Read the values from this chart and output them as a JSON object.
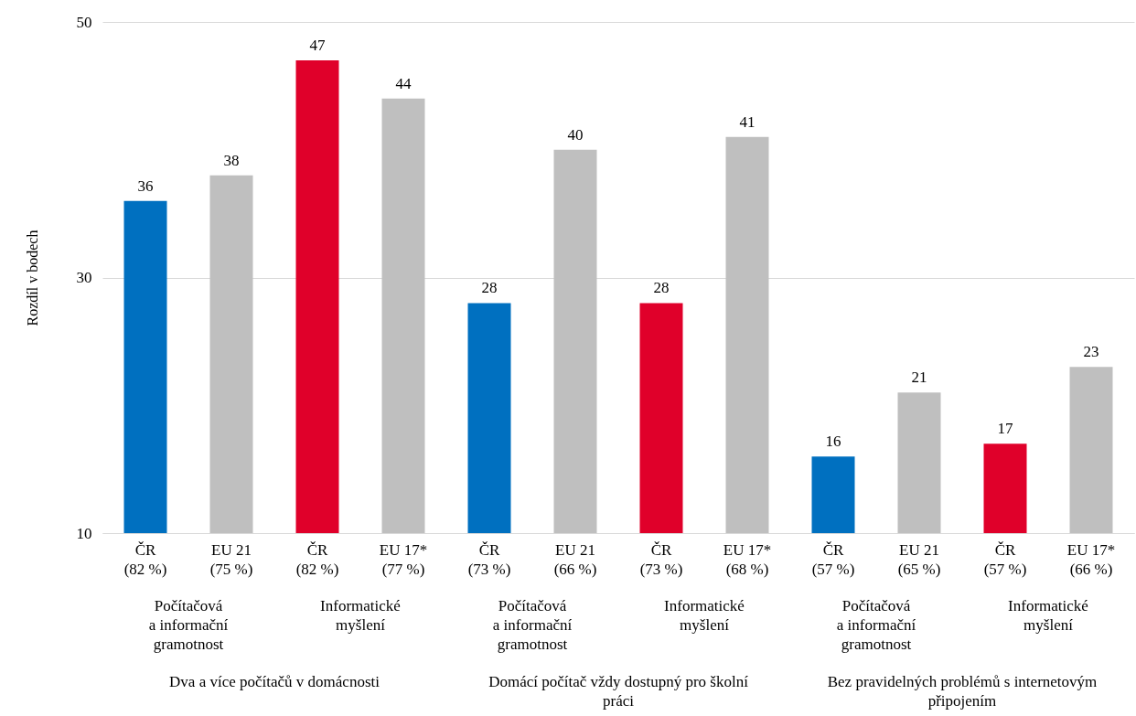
{
  "chart_data": {
    "type": "bar",
    "ylabel": "Rozdíl v bodech",
    "categories": [
      "ČR\n(82 %)",
      "EU 21\n(75 %)",
      "ČR\n(82 %)",
      "EU 17*\n(77 %)",
      "ČR\n(73 %)",
      "EU 21\n(66 %)",
      "ČR\n(73 %)",
      "EU 17*\n(68 %)",
      "ČR\n(57 %)",
      "EU 21\n(65 %)",
      "ČR\n(57 %)",
      "EU 17*\n(66 %)"
    ],
    "values": [
      36,
      38,
      47,
      44,
      28,
      40,
      28,
      41,
      16,
      21,
      17,
      23
    ],
    "colors": [
      "#0070c0",
      "#bfbfbf",
      "#e0002a",
      "#bfbfbf",
      "#0070c0",
      "#bfbfbf",
      "#e0002a",
      "#bfbfbf",
      "#0070c0",
      "#bfbfbf",
      "#e0002a",
      "#bfbfbf"
    ],
    "ylim": [
      10,
      50
    ],
    "yticks": [
      10,
      30,
      50
    ],
    "grid": "y",
    "data_labels": true,
    "annotations": [
      "Počítačová\na informační\ngramotnost",
      "Informatické\nmyšlení",
      "Počítačová\na informační\ngramotnost",
      "Informatické\nmyšlení",
      "Počítačová\na informační\ngramotnost",
      "Informatické\nmyšlení",
      "Dva a více počítačů v domácnosti",
      "Domácí počítač vždy dostupný pro školní\npráci",
      "Bez pravidelných problémů s internetovým\npřipojením"
    ]
  }
}
